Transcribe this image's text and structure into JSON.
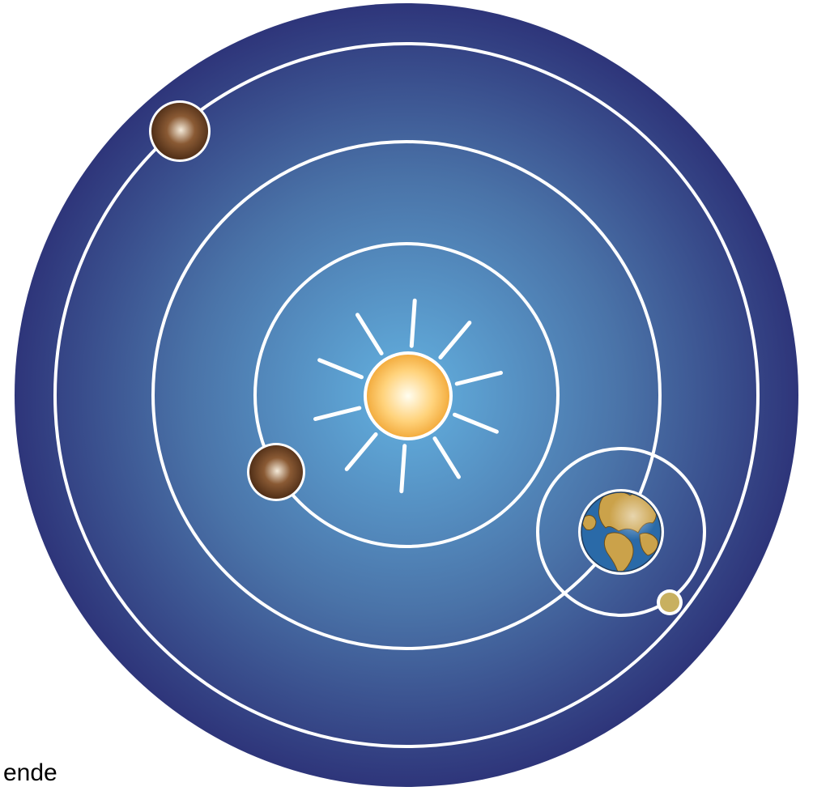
{
  "caption": {
    "text": "ende"
  },
  "colors": {
    "space_center": "#63b1e0",
    "space_mid": "#4a73a8",
    "space_edge": "#2e357a",
    "orbit": "#ffffff",
    "sun_core": "#fffdf0",
    "sun_body": "#ffd27a",
    "sun_edge": "#f2a93a",
    "planet_light": "#f4ead9",
    "planet_body": "#8a5a34",
    "planet_dark": "#4a2a14",
    "earth_ocean": "#2a6aa8",
    "earth_land": "#cba24a",
    "moon_body": "#c8b060"
  },
  "icons": {
    "sun": "sun-icon",
    "earth": "earth-icon",
    "moon": "moon-icon",
    "planet": "planet-icon"
  }
}
